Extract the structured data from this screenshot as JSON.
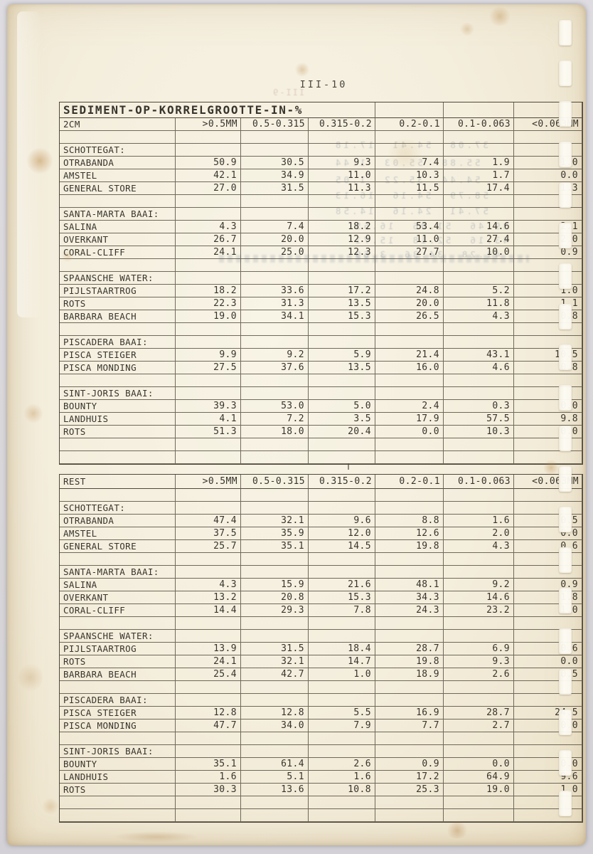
{
  "page": {
    "number": "III-10"
  },
  "colors": {
    "paper": "#f4eedd",
    "scanner_bg": "#d9d7da",
    "ink": "#38342c",
    "gridline": "#4e483c",
    "binding_mark": "#fdfbf4"
  },
  "tables": [
    {
      "title": "SEDIMENT-OP-KORRELGROOTTE-IN-%",
      "corner_label": "2CM",
      "columns": [
        ">0.5MM",
        "0.5-0.315",
        "0.315-0.2",
        "0.2-0.1",
        "0.1-0.063",
        "<0.063MM"
      ],
      "sections": [
        {
          "name": "SCHOTTEGAT:",
          "rows": [
            {
              "label": "OTRABANDA",
              "values": [
                "50.9",
                "30.5",
                "9.3",
                "7.4",
                "1.9",
                "1.0"
              ]
            },
            {
              "label": "AMSTEL",
              "values": [
                "42.1",
                "34.9",
                "11.0",
                "10.3",
                "1.7",
                "0.0"
              ]
            },
            {
              "label": "GENERAL STORE",
              "values": [
                "27.0",
                "31.5",
                "11.3",
                "11.5",
                "17.4",
                "1.3"
              ]
            }
          ]
        },
        {
          "name": "SANTA-MARTA BAAI:",
          "rows": [
            {
              "label": "SALINA",
              "values": [
                "4.3",
                "7.4",
                "18.2",
                "53.4",
                "14.6",
                "2.1"
              ]
            },
            {
              "label": "OVERKANT",
              "values": [
                "26.7",
                "20.0",
                "12.9",
                "11.0",
                "27.4",
                "2.0"
              ]
            },
            {
              "label": "CORAL-CLIFF",
              "values": [
                "24.1",
                "25.0",
                "12.3",
                "27.7",
                "10.0",
                "0.9"
              ]
            }
          ]
        },
        {
          "name": "SPAANSCHE WATER:",
          "rows": [
            {
              "label": "PIJLSTAARTROG",
              "values": [
                "18.2",
                "33.6",
                "17.2",
                "24.8",
                "5.2",
                "1.0"
              ]
            },
            {
              "label": "ROTS",
              "values": [
                "22.3",
                "31.3",
                "13.5",
                "20.0",
                "11.8",
                "1.1"
              ]
            },
            {
              "label": "BARBARA BEACH",
              "values": [
                "19.0",
                "34.1",
                "15.3",
                "26.5",
                "4.3",
                "0.8"
              ]
            }
          ]
        },
        {
          "name": "PISCADERA BAAI:",
          "rows": [
            {
              "label": "PISCA STEIGER",
              "values": [
                "9.9",
                "9.2",
                "5.9",
                "21.4",
                "43.1",
                "10.5"
              ]
            },
            {
              "label": "PISCA MONDING",
              "values": [
                "27.5",
                "37.6",
                "13.5",
                "16.0",
                "4.6",
                "0.8"
              ]
            }
          ]
        },
        {
          "name": "SINT-JORIS BAAI:",
          "rows": [
            {
              "label": "BOUNTY",
              "values": [
                "39.3",
                "53.0",
                "5.0",
                "2.4",
                "0.3",
                "0.0"
              ]
            },
            {
              "label": "LANDHUIS",
              "values": [
                "4.1",
                "7.2",
                "3.5",
                "17.9",
                "57.5",
                "9.8"
              ]
            },
            {
              "label": "ROTS",
              "values": [
                "51.3",
                "18.0",
                "20.4",
                "0.0",
                "10.3",
                "0.0"
              ]
            }
          ]
        }
      ]
    },
    {
      "title": null,
      "corner_label": "REST",
      "columns": [
        ">0.5MM",
        "0.5-0.315",
        "0.315-0.2",
        "0.2-0.1",
        "0.1-0.063",
        "<0.063MM"
      ],
      "sections": [
        {
          "name": "SCHOTTEGAT:",
          "rows": [
            {
              "label": "OTRABANDA",
              "values": [
                "47.4",
                "32.1",
                "9.6",
                "8.8",
                "1.6",
                "0.5"
              ]
            },
            {
              "label": "AMSTEL",
              "values": [
                "37.5",
                "35.9",
                "12.0",
                "12.6",
                "2.0",
                "0.0"
              ]
            },
            {
              "label": "GENERAL STORE",
              "values": [
                "25.7",
                "35.1",
                "14.5",
                "19.8",
                "4.3",
                "0.6"
              ]
            }
          ]
        },
        {
          "name": "SANTA-MARTA BAAI:",
          "rows": [
            {
              "label": "SALINA",
              "values": [
                "4.3",
                "15.9",
                "21.6",
                "48.1",
                "9.2",
                "0.9"
              ]
            },
            {
              "label": "OVERKANT",
              "values": [
                "13.2",
                "20.8",
                "15.3",
                "34.3",
                "14.6",
                "1.8"
              ]
            },
            {
              "label": "CORAL-CLIFF",
              "values": [
                "14.4",
                "29.3",
                "7.8",
                "24.3",
                "23.2",
                "1.0"
              ]
            }
          ]
        },
        {
          "name": "SPAANSCHE WATER:",
          "rows": [
            {
              "label": "PIJLSTAARTROG",
              "values": [
                "13.9",
                "31.5",
                "18.4",
                "28.7",
                "6.9",
                "0.6"
              ]
            },
            {
              "label": "ROTS",
              "values": [
                "24.1",
                "32.1",
                "14.7",
                "19.8",
                "9.3",
                "0.0"
              ]
            },
            {
              "label": "BARBARA BEACH",
              "values": [
                "25.4",
                "42.7",
                "1.0",
                "18.9",
                "2.6",
                "0.5"
              ]
            }
          ]
        },
        {
          "name": "PISCADERA BAAI:",
          "rows": [
            {
              "label": "PISCA STEIGER",
              "values": [
                "12.8",
                "12.8",
                "5.5",
                "16.9",
                "28.7",
                "24.5"
              ]
            },
            {
              "label": "PISCA MONDING",
              "values": [
                "47.7",
                "34.0",
                "7.9",
                "7.7",
                "2.7",
                "0.0"
              ]
            }
          ]
        },
        {
          "name": "SINT-JORIS BAAI:",
          "rows": [
            {
              "label": "BOUNTY",
              "values": [
                "35.1",
                "61.4",
                "2.6",
                "0.9",
                "0.0",
                "0.0"
              ]
            },
            {
              "label": "LANDHUIS",
              "values": [
                "1.6",
                "5.1",
                "1.6",
                "17.2",
                "64.9",
                "9.6"
              ]
            },
            {
              "label": "ROTS",
              "values": [
                "30.3",
                "13.6",
                "10.8",
                "25.3",
                "19.0",
                "1.0"
              ]
            }
          ]
        }
      ]
    }
  ],
  "artifacts": {
    "bleedthrough_page_number": "III-9",
    "bleedthrough_lines": [
      "37.08  54.41  17.18",
      "55.88  55.03  1.44",
      "54.44  35.22  1.05",
      "58.79  54.16  16.13",
      "57.41  24.16  14.58",
      "39.46  51.06  16.55",
      "43.16  52.18  15.71",
      "41.28  34.36  3.69"
    ]
  }
}
